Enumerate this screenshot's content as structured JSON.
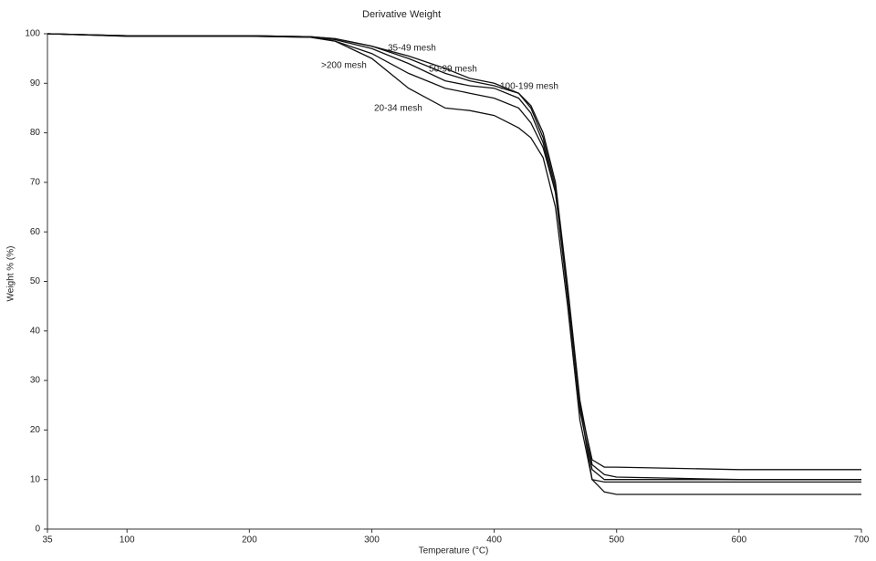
{
  "chart_data": {
    "type": "line",
    "title": "Derivative Weight",
    "x_label": "Temperature (°C)",
    "y_label": "Weight % (%)",
    "x": [
      35,
      100,
      200,
      250,
      270,
      300,
      330,
      360,
      380,
      400,
      420,
      430,
      440,
      450,
      460,
      470,
      480,
      490,
      500,
      600,
      700
    ],
    "series": [
      {
        "name": "35-49 mesh",
        "color": "#111111",
        "values": [
          100,
          99.6,
          99.6,
          99.4,
          99,
          97.5,
          95.5,
          93,
          91,
          90,
          88,
          85,
          79,
          69,
          48,
          25,
          14,
          12.5,
          12.5,
          12,
          12
        ]
      },
      {
        "name": "50-99 mesh",
        "color": "#111111",
        "values": [
          100,
          99.6,
          99.6,
          99.4,
          98.8,
          97,
          94,
          90.5,
          89.5,
          89,
          87,
          84,
          78,
          68,
          47,
          24,
          12,
          10,
          10,
          10,
          10
        ]
      },
      {
        "name": "100-199 mesh",
        "color": "#111111",
        "values": [
          100,
          99.6,
          99.6,
          99.4,
          99,
          97.5,
          95,
          92,
          90.5,
          89.5,
          88,
          85.5,
          80,
          70,
          49,
          26,
          13,
          11,
          10.5,
          10,
          10
        ]
      },
      {
        "name": ">200 mesh",
        "color": "#111111",
        "values": [
          100,
          99.5,
          99.5,
          99.3,
          98.5,
          96,
          92,
          89,
          88,
          87,
          85,
          82,
          77,
          68,
          48,
          25,
          10,
          7.5,
          7,
          7,
          7
        ]
      },
      {
        "name": "20-34 mesh",
        "color": "#111111",
        "values": [
          100,
          99.5,
          99.5,
          99.3,
          98.5,
          95,
          89,
          85,
          84.5,
          83.5,
          81,
          79,
          75,
          65,
          45,
          22,
          10,
          9.5,
          9.5,
          9.5,
          9.5
        ]
      }
    ],
    "xlim": [
      35,
      700
    ],
    "xticks": [
      35,
      100,
      200,
      300,
      400,
      500,
      600,
      700
    ],
    "ylim": [
      0,
      100
    ],
    "yticks": [
      0,
      10,
      20,
      30,
      40,
      50,
      60,
      70,
      80,
      90,
      100
    ]
  }
}
